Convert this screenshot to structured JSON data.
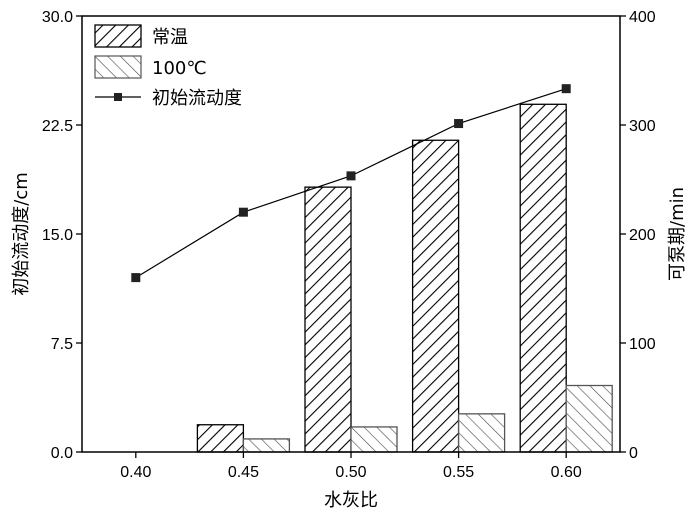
{
  "chart_data": {
    "type": "bar",
    "categories": [
      "0.40",
      "0.45",
      "0.50",
      "0.55",
      "0.60"
    ],
    "xlabel": "水灰比",
    "ylabel": "初始流动度/cm",
    "ylabel_right": "可泵期/min",
    "ylim": [
      0,
      30
    ],
    "ylim_right": [
      0,
      400
    ],
    "yticks": [
      "0.0",
      "7.5",
      "15.0",
      "22.5",
      "30.0"
    ],
    "yticks_right": [
      "0",
      "100",
      "200",
      "300",
      "400"
    ],
    "series": [
      {
        "name": "常温",
        "type": "bar",
        "axis": "right",
        "pattern": "dense-forward-hatch",
        "values": [
          0,
          25,
          243,
          286,
          319
        ]
      },
      {
        "name": "100℃",
        "type": "bar",
        "axis": "right",
        "pattern": "light-back-hatch",
        "values": [
          0,
          12,
          23,
          35,
          61
        ]
      },
      {
        "name": "初始流动度",
        "type": "line",
        "axis": "left",
        "marker": "square",
        "values": [
          12.0,
          16.5,
          19.0,
          22.6,
          25.0
        ]
      }
    ],
    "legend_position": "top-left",
    "grid": false,
    "colors": {
      "line": "#000000",
      "marker": "#222222",
      "bar_fill": "#ffffff",
      "hatch_dense": "#000000",
      "hatch_light": "#555555"
    }
  }
}
